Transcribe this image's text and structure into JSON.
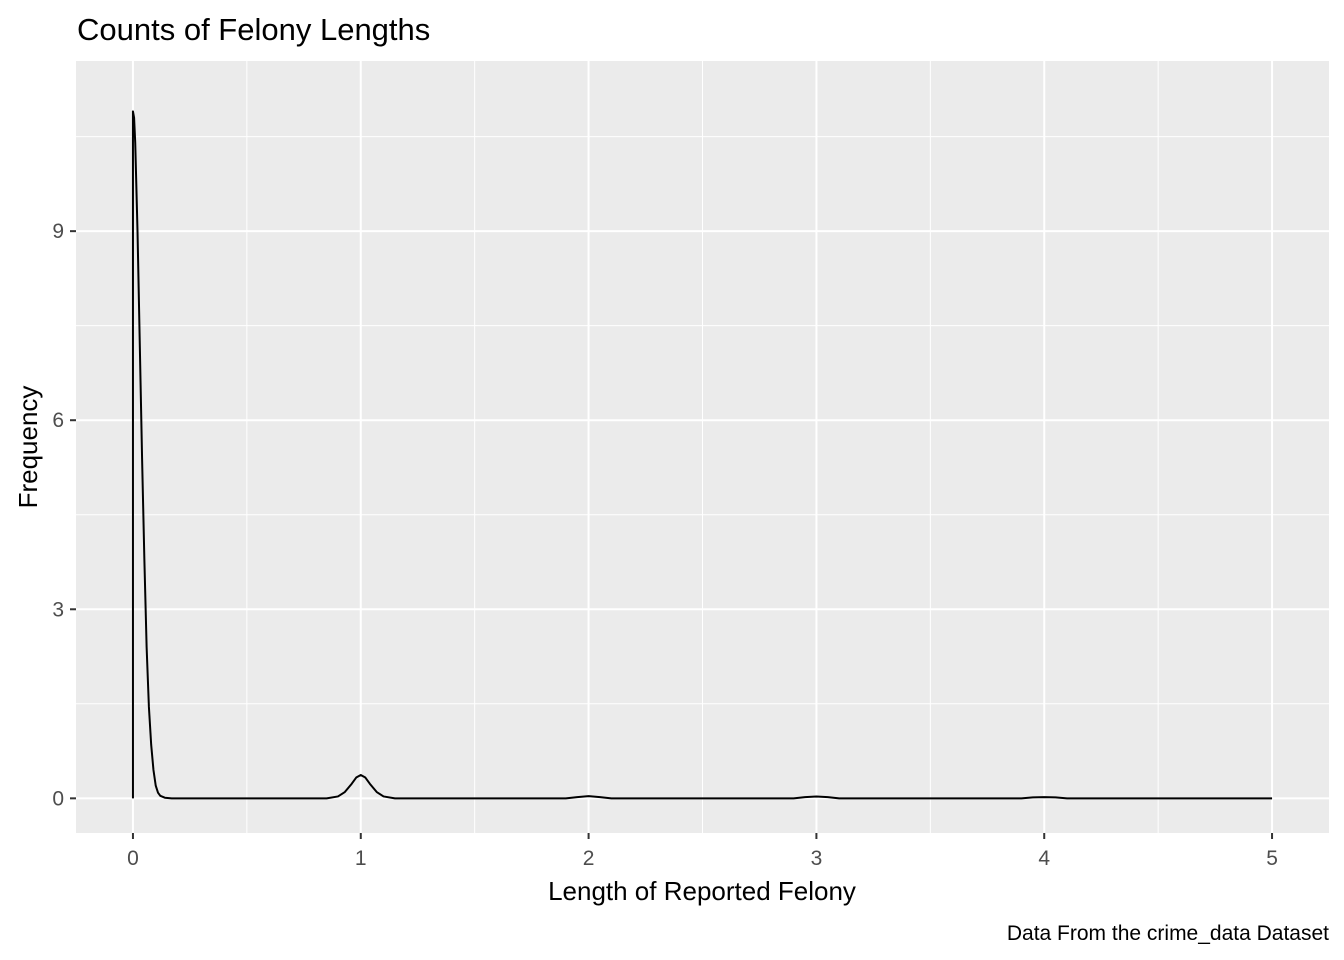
{
  "chart_data": {
    "type": "area",
    "title": "Counts of Felony Lengths",
    "xlabel": "Length of Reported Felony",
    "ylabel": "Frequency",
    "caption": "Data From the crime_data Dataset",
    "xlim": [
      -0.25,
      5.25
    ],
    "ylim": [
      -0.55,
      11.7
    ],
    "x_ticks": [
      0,
      1,
      2,
      3,
      4,
      5
    ],
    "x_tick_labels": [
      "0",
      "1",
      "2",
      "3",
      "4",
      "5"
    ],
    "y_ticks": [
      0,
      3,
      6,
      9
    ],
    "y_tick_labels": [
      "0",
      "3",
      "6",
      "9"
    ],
    "grid": true,
    "legend": "none",
    "panel_color": "#ebebeb",
    "grid_color": "#ffffff",
    "line_color": "#000000",
    "series": [
      {
        "x": [
          0,
          0,
          0.005,
          0.01,
          0.02,
          0.03,
          0.04,
          0.05,
          0.06,
          0.07,
          0.08,
          0.09,
          0.1,
          0.11,
          0.12,
          0.14,
          0.17,
          0.2,
          0.5,
          0.85,
          0.9,
          0.93,
          0.96,
          0.98,
          1.0,
          1.02,
          1.04,
          1.07,
          1.1,
          1.15,
          1.5,
          1.9,
          1.95,
          2.0,
          2.05,
          2.1,
          2.5,
          2.9,
          2.95,
          3.0,
          3.05,
          3.1,
          3.5,
          3.9,
          3.95,
          4.0,
          4.05,
          4.1,
          4.5,
          4.95,
          5.0
        ],
        "y": [
          0,
          10.9,
          10.8,
          10.4,
          9.0,
          7.2,
          5.4,
          3.8,
          2.4,
          1.45,
          0.85,
          0.45,
          0.2,
          0.09,
          0.04,
          0.01,
          0,
          0,
          0,
          0,
          0.03,
          0.1,
          0.23,
          0.33,
          0.37,
          0.33,
          0.23,
          0.1,
          0.03,
          0,
          0,
          0,
          0.02,
          0.035,
          0.02,
          0,
          0,
          0,
          0.02,
          0.03,
          0.02,
          0,
          0,
          0,
          0.015,
          0.02,
          0.015,
          0,
          0,
          0,
          0
        ]
      }
    ]
  }
}
